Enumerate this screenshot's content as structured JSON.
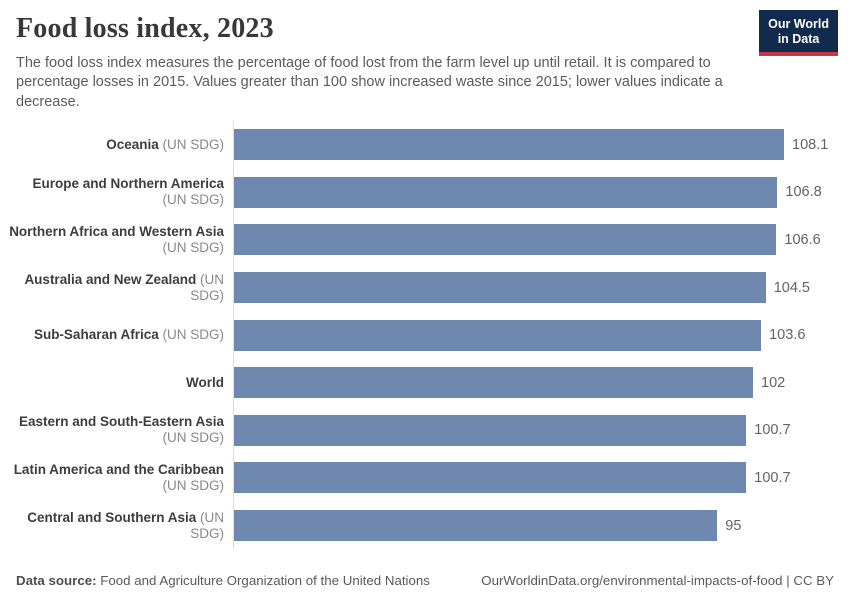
{
  "header": {
    "title": "Food loss index, 2023",
    "subtitle": "The food loss index measures the percentage of food lost from the farm level up until retail. It is compared to percentage losses in 2015. Values greater than 100 show increased waste since 2015; lower values indicate a decrease.",
    "logo": {
      "line1": "Our World",
      "line2": "in Data",
      "bg_color": "#112b4f",
      "accent_color": "#cb3545"
    }
  },
  "chart_data": {
    "type": "bar",
    "orientation": "horizontal",
    "title": "Food loss index, 2023",
    "categories": [
      "Oceania",
      "Europe and Northern America",
      "Northern Africa and Western Asia",
      "Australia and New Zealand",
      "Sub-Saharan Africa",
      "World",
      "Eastern and South-Eastern Asia",
      "Latin America and the Caribbean",
      "Central and Southern Asia"
    ],
    "category_suffixes": [
      "(UN SDG)",
      "(UN SDG)",
      "(UN SDG)",
      "(UN SDG)",
      "(UN SDG)",
      "",
      "(UN SDG)",
      "(UN SDG)",
      "(UN SDG)"
    ],
    "suffix_on_new_line": [
      false,
      true,
      true,
      false,
      false,
      false,
      true,
      true,
      false
    ],
    "values": [
      108.1,
      106.8,
      106.6,
      104.5,
      103.6,
      102,
      100.7,
      100.7,
      95
    ],
    "value_labels": [
      "108.1",
      "106.8",
      "106.6",
      "104.5",
      "103.6",
      "102",
      "100.7",
      "100.7",
      "95"
    ],
    "xlim": [
      0,
      108.1
    ],
    "grid": false,
    "legend": "none",
    "bar_color": "#6f88af",
    "axis_color": "#dddddd"
  },
  "footer": {
    "datasource_label": "Data source:",
    "datasource": "Food and Agriculture Organization of the United Nations",
    "link": "OurWorldinData.org/environmental-impacts-of-food | CC BY"
  }
}
